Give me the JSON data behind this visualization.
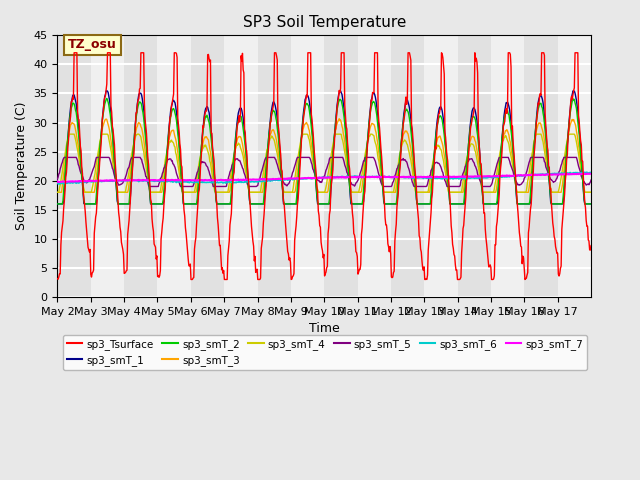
{
  "title": "SP3 Soil Temperature",
  "xlabel": "Time",
  "ylabel": "Soil Temperature (C)",
  "ylim": [
    0,
    45
  ],
  "annotation_text": "TZ_osu",
  "annotation_color": "#8B0000",
  "annotation_bg": "#FFFFCC",
  "annotation_border": "#8B6914",
  "series_colors": {
    "sp3_Tsurface": "#FF0000",
    "sp3_smT_1": "#00008B",
    "sp3_smT_2": "#00CC00",
    "sp3_smT_3": "#FFA500",
    "sp3_smT_4": "#CCCC00",
    "sp3_smT_5": "#800080",
    "sp3_smT_6": "#00CCCC",
    "sp3_smT_7": "#FF00FF"
  },
  "bg_color": "#E8E8E8",
  "plot_bg": "#F0F0F0",
  "grid_color": "#FFFFFF",
  "tick_labels": [
    "May 2",
    "May 3",
    "May 4",
    "May 5",
    "May 6",
    "May 7",
    "May 8",
    "May 9",
    "May 10",
    "May 11",
    "May 12",
    "May 13",
    "May 14",
    "May 15",
    "May 16",
    "May 17"
  ],
  "n_days": 16,
  "points_per_day": 48
}
